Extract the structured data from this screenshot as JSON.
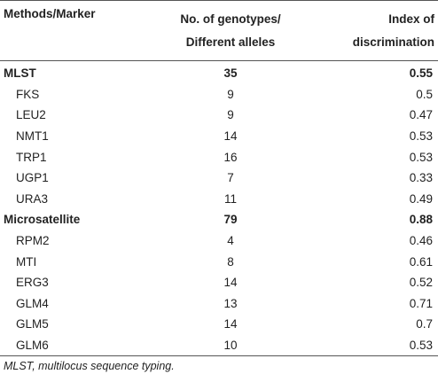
{
  "headers": {
    "col1": "Methods/Marker",
    "col2_line1": "No. of genotypes/",
    "col2_line2": "Different alleles",
    "col3_line1": "Index of",
    "col3_line2": "discrimination"
  },
  "rows": [
    {
      "name": "MLST",
      "genotypes": "35",
      "index": "0.55",
      "group": true
    },
    {
      "name": "FKS",
      "genotypes": "9",
      "index": "0.5",
      "group": false
    },
    {
      "name": "LEU2",
      "genotypes": "9",
      "index": "0.47",
      "group": false
    },
    {
      "name": "NMT1",
      "genotypes": "14",
      "index": "0.53",
      "group": false
    },
    {
      "name": "TRP1",
      "genotypes": "16",
      "index": "0.53",
      "group": false
    },
    {
      "name": "UGP1",
      "genotypes": "7",
      "index": "0.33",
      "group": false
    },
    {
      "name": "URA3",
      "genotypes": "11",
      "index": "0.49",
      "group": false
    },
    {
      "name": "Microsatellite",
      "genotypes": "79",
      "index": "0.88",
      "group": true
    },
    {
      "name": "RPM2",
      "genotypes": "4",
      "index": "0.46",
      "group": false
    },
    {
      "name": "MTI",
      "genotypes": "8",
      "index": "0.61",
      "group": false
    },
    {
      "name": "ERG3",
      "genotypes": "14",
      "index": "0.52",
      "group": false
    },
    {
      "name": "GLM4",
      "genotypes": "13",
      "index": "0.71",
      "group": false
    },
    {
      "name": "GLM5",
      "genotypes": "14",
      "index": "0.7",
      "group": false
    },
    {
      "name": "GLM6",
      "genotypes": "10",
      "index": "0.53",
      "group": false
    }
  ],
  "footnote": "MLST, multilocus sequence typing."
}
